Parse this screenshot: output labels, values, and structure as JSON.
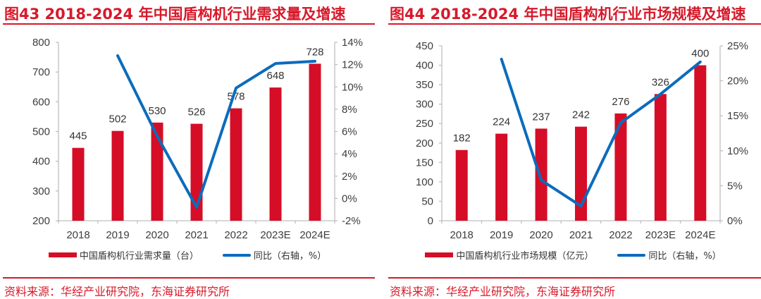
{
  "panels": [
    {
      "figure_title": "图43  2018-2024 年中国盾构机行业需求量及增速",
      "legend_bar": "中国盾构机行业需求量（台）",
      "legend_line": "同比（右轴，%）",
      "source": "资料来源：华经产业研究院，东海证券研究所"
    },
    {
      "figure_title": "图44  2018-2024 年中国盾构机行业市场规模及增速",
      "legend_bar": "中国盾构机行业市场规模（亿元）",
      "legend_line": "同比（右轴，%）",
      "source": "资料来源：华经产业研究院，东海证券研究所"
    }
  ],
  "colors": {
    "bar": "#d60d26",
    "line": "#0b6cbc",
    "accent": "#d7192a",
    "axis": "#bfbfbf"
  },
  "chart_data": [
    {
      "type": "bar",
      "title": "2018-2024 年中国盾构机行业需求量及增速",
      "categories": [
        "2018",
        "2019",
        "2020",
        "2021",
        "2022",
        "2023E",
        "2024E"
      ],
      "series": [
        {
          "name": "中国盾构机行业需求量（台）",
          "type": "bar",
          "axis": "left",
          "values": [
            445,
            502,
            530,
            526,
            578,
            648,
            728
          ]
        },
        {
          "name": "同比（右轴，%）",
          "type": "line",
          "axis": "right",
          "values": [
            null,
            12.8,
            5.6,
            -0.8,
            9.9,
            12.1,
            12.3
          ]
        }
      ],
      "ylim": [
        200,
        800
      ],
      "yticks": [
        200,
        300,
        400,
        500,
        600,
        700,
        800
      ],
      "y2lim": [
        -2,
        14
      ],
      "y2ticks": [
        "-2%",
        "0%",
        "2%",
        "4%",
        "6%",
        "8%",
        "10%",
        "12%",
        "14%"
      ],
      "y2values": [
        -2,
        0,
        2,
        4,
        6,
        8,
        10,
        12,
        14
      ],
      "xlabel": "",
      "ylabel": "",
      "grid": false,
      "legend": "bottom"
    },
    {
      "type": "bar",
      "title": "2018-2024 年中国盾构机行业市场规模及增速",
      "categories": [
        "2018",
        "2019",
        "2020",
        "2021",
        "2022",
        "2023E",
        "2024E"
      ],
      "series": [
        {
          "name": "中国盾构机行业市场规模（亿元）",
          "type": "bar",
          "axis": "left",
          "values": [
            182,
            224,
            237,
            242,
            276,
            326,
            400
          ]
        },
        {
          "name": "同比（右轴，%）",
          "type": "line",
          "axis": "right",
          "values": [
            null,
            23.1,
            5.8,
            2.1,
            14.0,
            18.1,
            22.7
          ]
        }
      ],
      "ylim": [
        0,
        450
      ],
      "yticks": [
        0,
        50,
        100,
        150,
        200,
        250,
        300,
        350,
        400,
        450
      ],
      "y2lim": [
        0,
        25
      ],
      "y2ticks": [
        "0%",
        "5%",
        "10%",
        "15%",
        "20%",
        "25%"
      ],
      "y2values": [
        0,
        5,
        10,
        15,
        20,
        25
      ],
      "xlabel": "",
      "ylabel": "",
      "grid": false,
      "legend": "bottom"
    }
  ]
}
